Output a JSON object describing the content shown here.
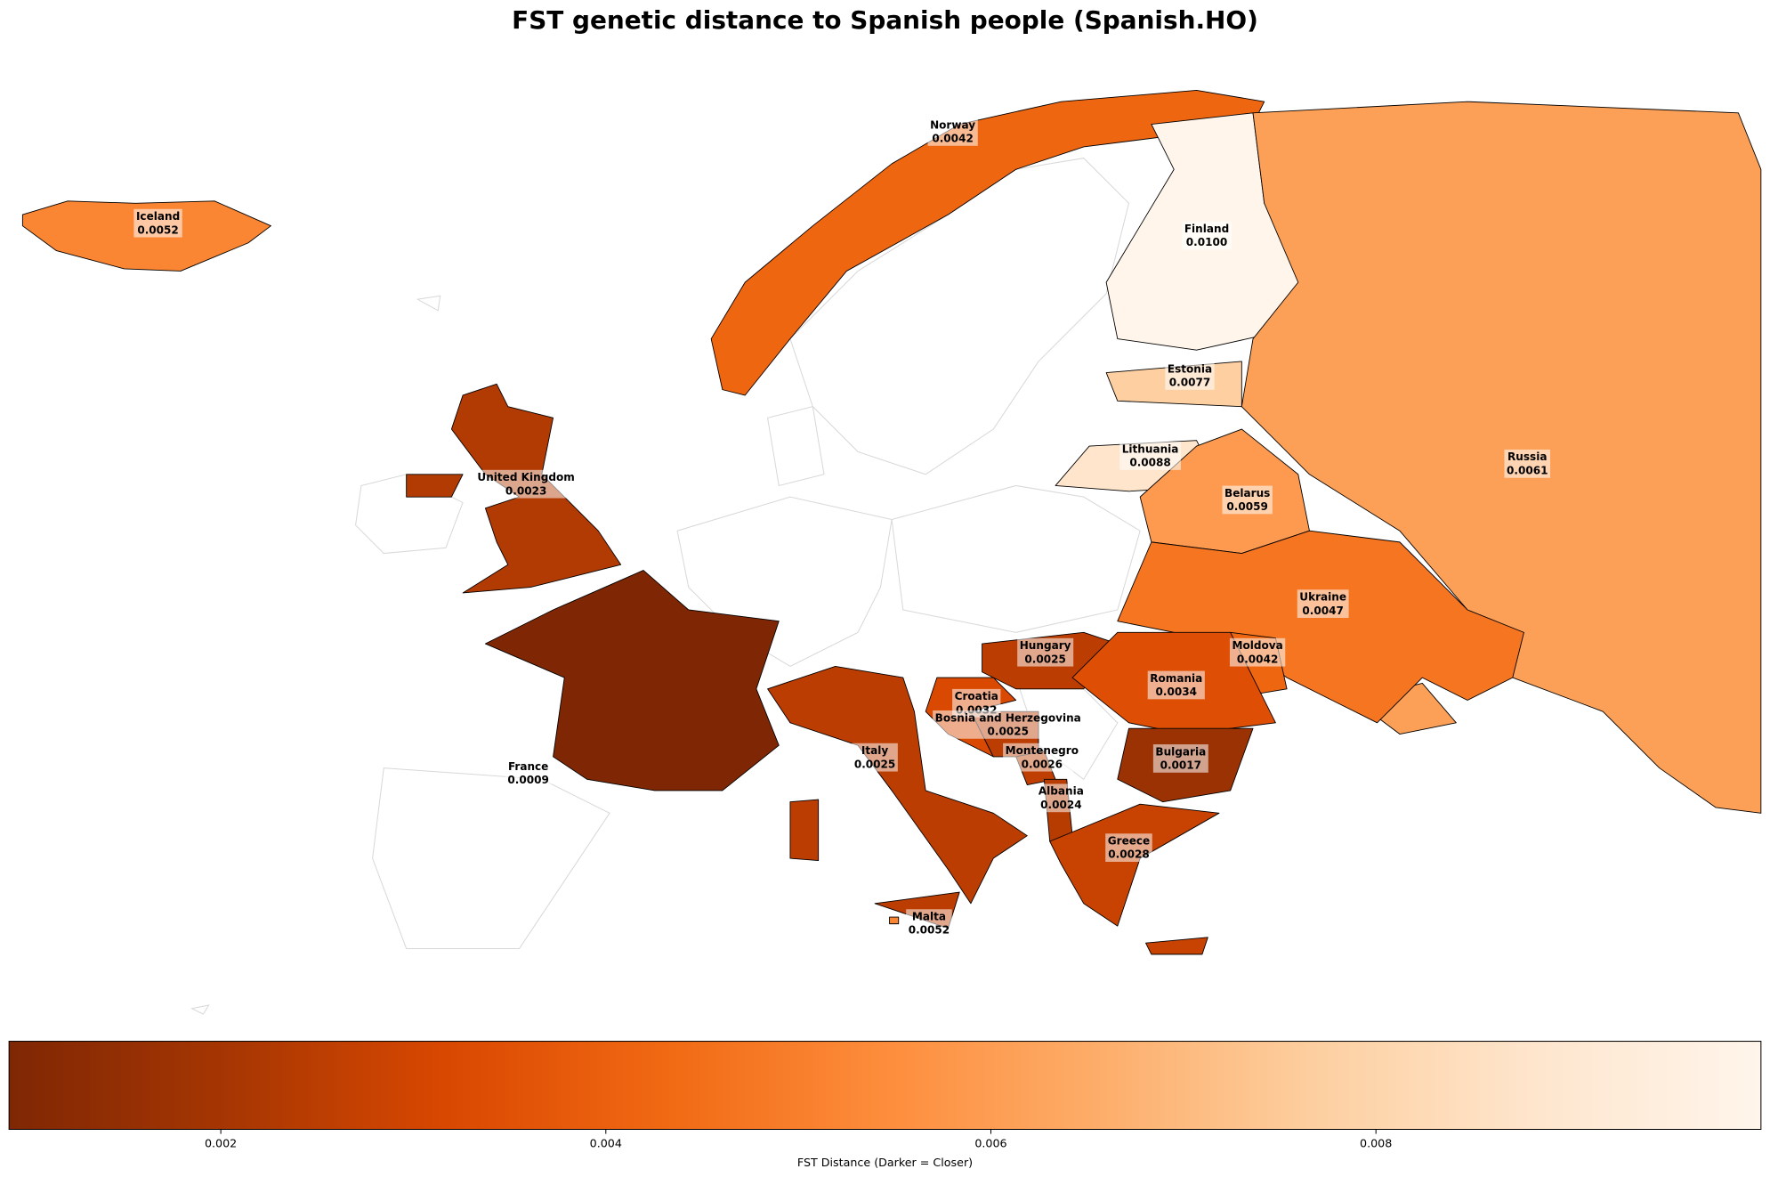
{
  "chart_data": {
    "type": "choropleth",
    "title": "FST genetic distance to Spanish people (Spanish.HO)",
    "colormap": "Oranges_r",
    "countries": [
      {
        "name": "Iceland",
        "value": 0.0052,
        "value_label": "0.0052"
      },
      {
        "name": "Norway",
        "value": 0.0042,
        "value_label": "0.0042"
      },
      {
        "name": "Finland",
        "value": 0.01,
        "value_label": "0.0100"
      },
      {
        "name": "Estonia",
        "value": 0.0077,
        "value_label": "0.0077"
      },
      {
        "name": "Lithuania",
        "value": 0.0088,
        "value_label": "0.0088"
      },
      {
        "name": "United Kingdom",
        "value": 0.0023,
        "value_label": "0.0023"
      },
      {
        "name": "Belarus",
        "value": 0.0059,
        "value_label": "0.0059"
      },
      {
        "name": "Russia",
        "value": 0.0061,
        "value_label": "0.0061"
      },
      {
        "name": "Ukraine",
        "value": 0.0047,
        "value_label": "0.0047"
      },
      {
        "name": "Moldova",
        "value": 0.0042,
        "value_label": "0.0042"
      },
      {
        "name": "Hungary",
        "value": 0.0025,
        "value_label": "0.0025"
      },
      {
        "name": "Romania",
        "value": 0.0034,
        "value_label": "0.0034"
      },
      {
        "name": "Croatia",
        "value": 0.0032,
        "value_label": "0.0032"
      },
      {
        "name": "Bosnia and Herzegovina",
        "value": 0.0025,
        "value_label": "0.0025"
      },
      {
        "name": "Montenegro",
        "value": 0.0026,
        "value_label": "0.0026"
      },
      {
        "name": "Bulgaria",
        "value": 0.0017,
        "value_label": "0.0017"
      },
      {
        "name": "Italy",
        "value": 0.0025,
        "value_label": "0.0025"
      },
      {
        "name": "France",
        "value": 0.0009,
        "value_label": "0.0009"
      },
      {
        "name": "Albania",
        "value": 0.0024,
        "value_label": "0.0024"
      },
      {
        "name": "Greece",
        "value": 0.0028,
        "value_label": "0.0028"
      },
      {
        "name": "Malta",
        "value": 0.0052,
        "value_label": "0.0052"
      }
    ],
    "colorbar": {
      "label": "FST Distance (Darker = Closer)",
      "lim": [
        0.0009,
        0.01
      ],
      "ticks": [
        0.002,
        0.004,
        0.006,
        0.008
      ]
    }
  }
}
